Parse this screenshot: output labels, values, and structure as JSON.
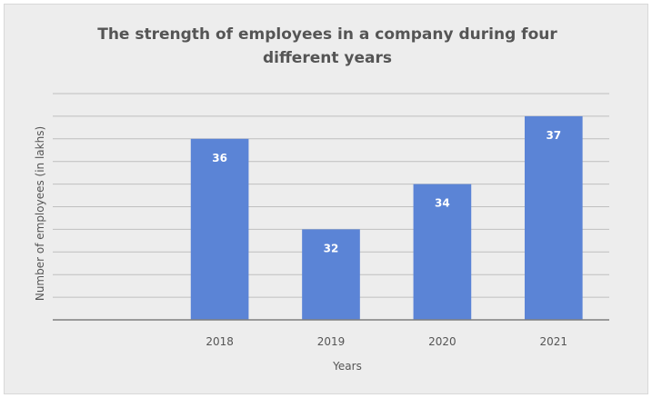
{
  "chart_data": {
    "type": "bar",
    "title_lines": [
      "The strength of employees in a company during four",
      "different years"
    ],
    "categories": [
      "2018",
      "2019",
      "2020",
      "2021"
    ],
    "values": [
      36,
      32,
      34,
      37
    ],
    "xlabel": "Years",
    "ylabel": "Number of employees (in lakhs)",
    "ylim": [
      28,
      38
    ],
    "grid": true,
    "legend": "none",
    "bar_color": "#5b84d6",
    "grid_color": "#bfbfbf",
    "axis_color": "#7f7f7f",
    "label_color": "#ffffff"
  }
}
